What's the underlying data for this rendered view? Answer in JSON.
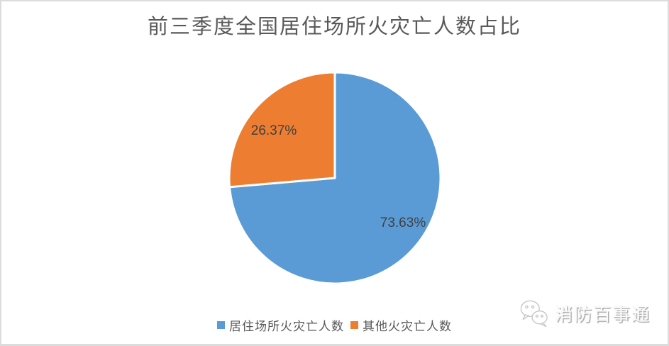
{
  "chart_data": {
    "type": "pie",
    "title": "前三季度全国居住场所火灾亡人数占比",
    "slices": [
      {
        "name": "居住场所火灾亡人数",
        "value": 73.63,
        "label": "73.63%",
        "color": "#5B9BD5"
      },
      {
        "name": "其他火灾亡人数",
        "value": 26.37,
        "label": "26.37%",
        "color": "#ED7D31"
      }
    ],
    "start_angle_deg": 0,
    "direction": "clockwise",
    "slice_border_color": "#ffffff",
    "legend_position": "bottom",
    "data_labels": "percent",
    "background": "#ffffff",
    "title_color": "#595959",
    "label_color": "#404040"
  },
  "watermark": {
    "text": "消防百事通",
    "icon": "wechat-chat-bubbles"
  }
}
